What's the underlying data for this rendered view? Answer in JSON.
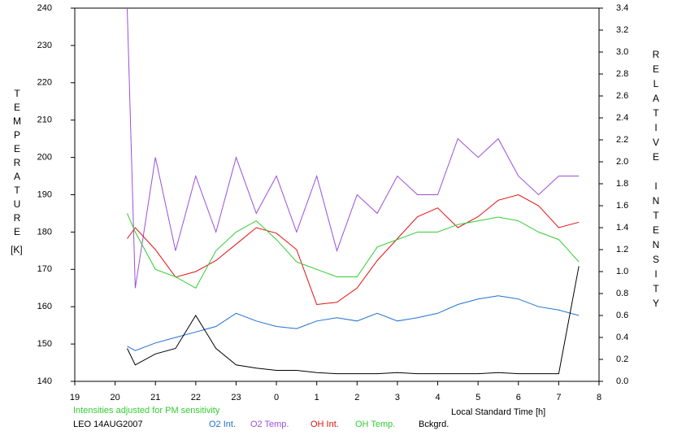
{
  "chart_data": {
    "type": "line",
    "xlabel": "Local Standard Time [h]",
    "ylabel": "TEMPERATURE",
    "ylabel_unit": "[K]",
    "y2label": "RELATIVE INTENSITY",
    "note": "Intensities adjusted for PM sensitivity",
    "note_color": "#33cc33",
    "station": "LEO 14AUG2007",
    "legend": "bottom",
    "x": [
      20.3,
      20.5,
      21,
      21.5,
      22,
      22.5,
      23,
      23.5,
      24,
      24.5,
      25,
      25.5,
      26,
      26.5,
      27,
      27.5,
      28,
      28.5,
      29,
      29.5,
      30,
      30.5,
      31,
      31.5
    ],
    "xlim": [
      19,
      32
    ],
    "xticks": [
      19,
      20,
      21,
      22,
      23,
      {
        "value": 24,
        "label": "0"
      },
      {
        "value": 25,
        "label": "1"
      },
      {
        "value": 26,
        "label": "2"
      },
      {
        "value": 27,
        "label": "3"
      },
      {
        "value": 28,
        "label": "4"
      },
      {
        "value": 29,
        "label": "5"
      },
      {
        "value": 30,
        "label": "6"
      },
      {
        "value": 31,
        "label": "7"
      },
      {
        "value": 32,
        "label": "8"
      }
    ],
    "ylim": [
      140,
      240
    ],
    "yticks": [
      140,
      150,
      160,
      170,
      180,
      190,
      200,
      210,
      220,
      230,
      240
    ],
    "y2lim": [
      0,
      3.4
    ],
    "y2ticks": [
      {
        "value": 0,
        "label": "0.0"
      },
      0.2,
      0.4,
      0.6,
      0.8,
      {
        "value": 1,
        "label": "1.0"
      },
      1.2,
      1.4,
      1.6,
      1.8,
      {
        "value": 2,
        "label": "2.0"
      },
      2.2,
      2.4,
      2.6,
      2.8,
      {
        "value": 3,
        "label": "3.0"
      },
      3.2,
      3.4
    ],
    "series": [
      {
        "name": "O2 Int.",
        "color": "#1f6fd0",
        "axis": "y2",
        "values": [
          0.32,
          0.28,
          0.35,
          0.4,
          0.45,
          0.5,
          0.62,
          0.55,
          0.5,
          0.48,
          0.55,
          0.58,
          0.55,
          0.62,
          0.55,
          0.58,
          0.62,
          0.7,
          0.75,
          0.78,
          0.75,
          0.68,
          0.65,
          0.6
        ]
      },
      {
        "name": "O2 Temp.",
        "color": "#9b4fd8",
        "values": [
          240,
          165,
          200,
          175,
          195,
          180,
          200,
          185,
          195,
          180,
          195,
          175,
          190,
          185,
          195,
          190,
          190,
          205,
          200,
          205,
          195,
          190,
          195,
          195
        ]
      },
      {
        "name": "OH Int.",
        "color": "#e01010",
        "axis": "y2",
        "values": [
          1.3,
          1.4,
          1.2,
          0.95,
          1.0,
          1.1,
          1.25,
          1.4,
          1.35,
          1.2,
          0.7,
          0.72,
          0.85,
          1.1,
          1.3,
          1.5,
          1.58,
          1.4,
          1.5,
          1.65,
          1.7,
          1.6,
          1.4,
          1.45
        ]
      },
      {
        "name": "OH Temp.",
        "color": "#33cc33",
        "values": [
          185,
          180,
          170,
          168,
          165,
          175,
          180,
          183,
          178,
          172,
          170,
          168,
          168,
          176,
          178,
          180,
          180,
          182,
          183,
          184,
          183,
          180,
          178,
          172
        ]
      },
      {
        "name": "Bckgrd.",
        "color": "#000000",
        "axis": "y2",
        "values": [
          0.3,
          0.15,
          0.25,
          0.3,
          0.6,
          0.3,
          0.15,
          0.12,
          0.1,
          0.1,
          0.08,
          0.07,
          0.07,
          0.07,
          0.08,
          0.07,
          0.07,
          0.07,
          0.07,
          0.08,
          0.07,
          0.07,
          0.07,
          1.05
        ]
      }
    ]
  }
}
